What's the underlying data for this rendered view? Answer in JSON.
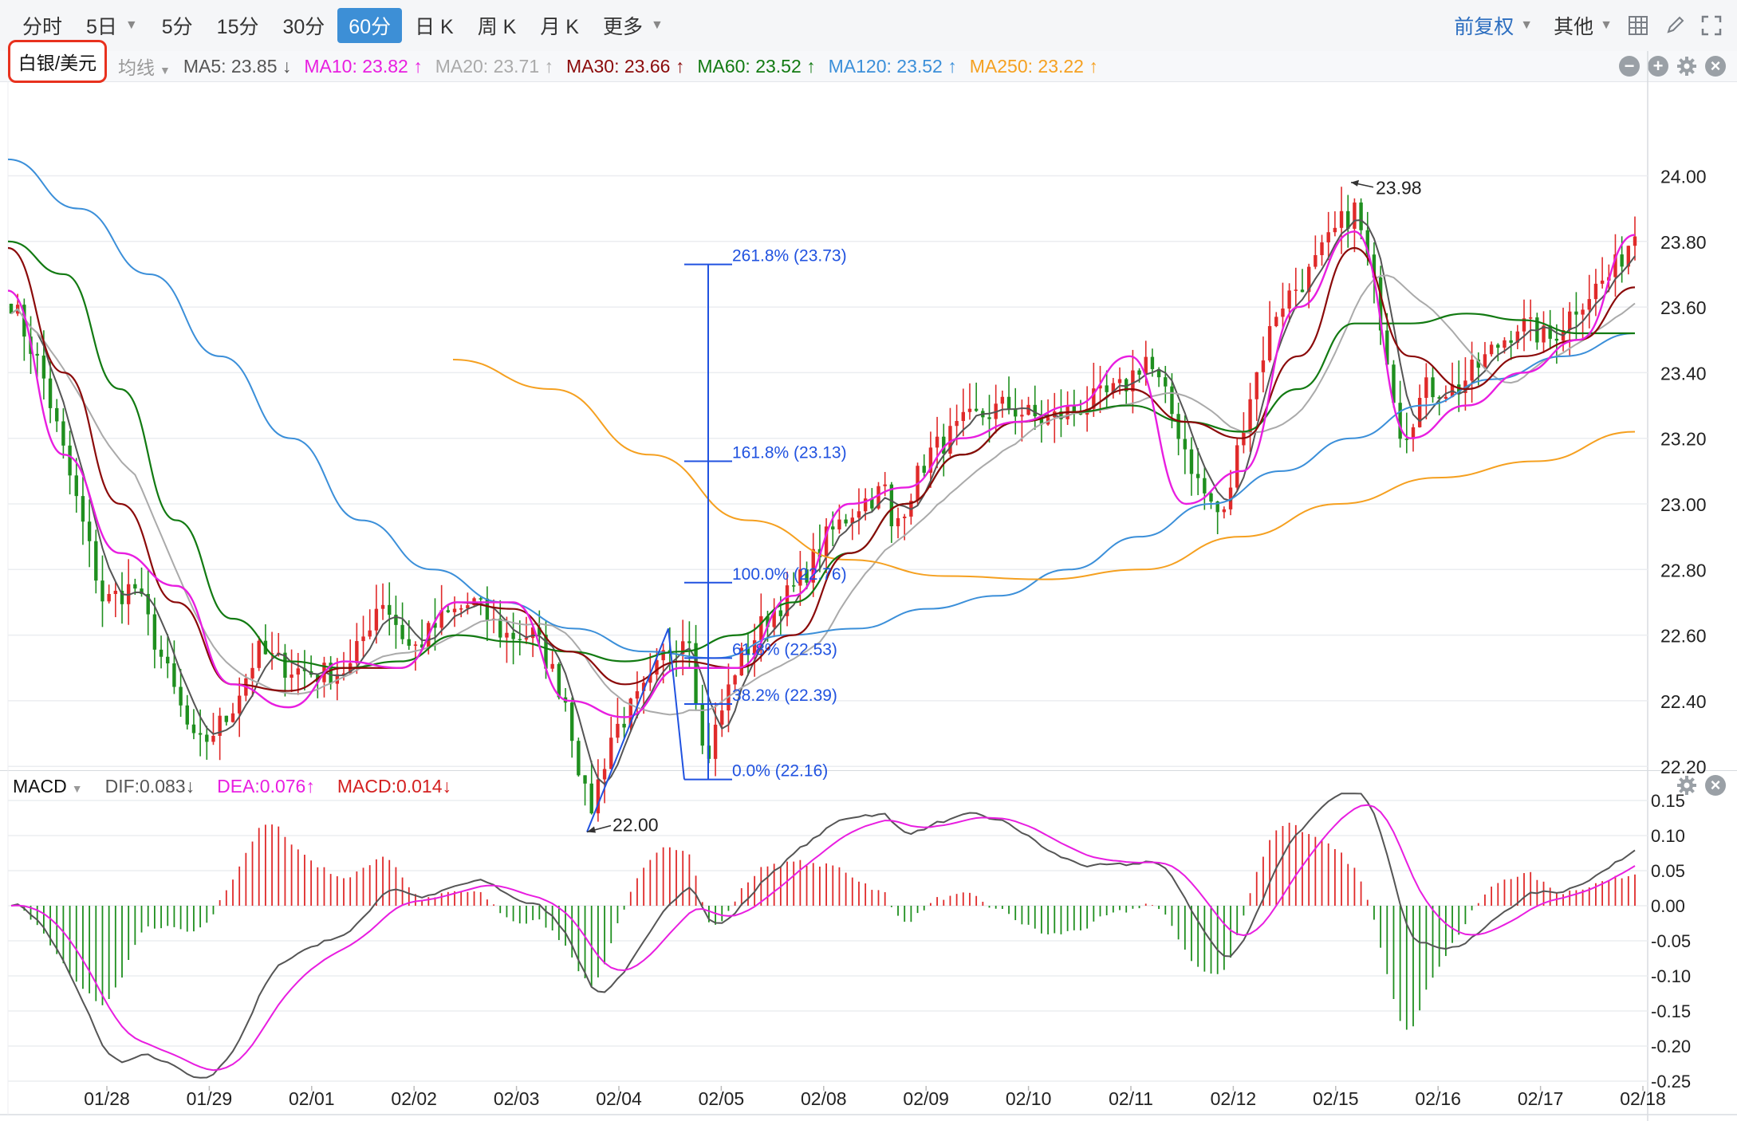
{
  "toolbar": {
    "tabs": [
      {
        "label": "分时",
        "active": false
      },
      {
        "label": "5日",
        "active": false,
        "dropdown": true
      },
      {
        "label": "5分",
        "active": false
      },
      {
        "label": "15分",
        "active": false
      },
      {
        "label": "30分",
        "active": false
      },
      {
        "label": "60分",
        "active": true
      },
      {
        "label": "日 K",
        "active": false
      },
      {
        "label": "周 K",
        "active": false
      },
      {
        "label": "月 K",
        "active": false
      },
      {
        "label": "更多",
        "active": false,
        "dropdown": true
      }
    ],
    "adjust_label": "前复权",
    "other_label": "其他",
    "icons": [
      "grid-icon",
      "pencil-icon",
      "fullscreen-icon"
    ]
  },
  "symbol": "白银/美元",
  "ma_bar": {
    "mode_label": "均线",
    "items": [
      {
        "label": "MA5: 23.85 ↓",
        "color": "#555555"
      },
      {
        "label": "MA10: 23.82 ↑",
        "color": "#e81ee0"
      },
      {
        "label": "MA20: 23.71 ↑",
        "color": "#aaaaaa"
      },
      {
        "label": "MA30: 23.66 ↑",
        "color": "#8b0a0a"
      },
      {
        "label": "MA60: 23.52 ↑",
        "color": "#127a12"
      },
      {
        "label": "MA120: 23.52 ↑",
        "color": "#3b8fd9"
      },
      {
        "label": "MA250: 23.22 ↑",
        "color": "#f5a020"
      }
    ]
  },
  "macd_bar": {
    "title": "MACD",
    "items": [
      {
        "label": "DIF:0.083↓",
        "color": "#555555"
      },
      {
        "label": "DEA:0.076↑",
        "color": "#e81ee0"
      },
      {
        "label": "MACD:0.014↓",
        "color": "#d42020"
      }
    ]
  },
  "chart_data": {
    "type": "candlestick",
    "interval": "60分",
    "price_axis": {
      "ticks": [
        24.0,
        23.8,
        23.6,
        23.4,
        23.2,
        23.0,
        22.8,
        22.6,
        22.4,
        22.2
      ],
      "range": [
        21.98,
        24.08
      ]
    },
    "date_labels": [
      "01/28",
      "01/29",
      "02/01",
      "02/02",
      "02/03",
      "02/04",
      "02/05",
      "02/08",
      "02/09",
      "02/10",
      "02/11",
      "02/12",
      "02/15",
      "02/16",
      "02/17",
      "02/18"
    ],
    "high_marker": {
      "label": "23.98",
      "value": 23.98
    },
    "low_marker": {
      "label": "22.00",
      "value": 22.0
    },
    "fibonacci": {
      "levels": [
        {
          "label": "261.8% (23.73)",
          "value": 23.73
        },
        {
          "label": "161.8% (23.13)",
          "value": 23.13
        },
        {
          "label": "100.0% (22.76)",
          "value": 22.76
        },
        {
          "label": "61.8% (22.53)",
          "value": 22.53
        },
        {
          "label": "38.2% (22.39)",
          "value": 22.39
        },
        {
          "label": "0.0% (22.16)",
          "value": 22.16
        }
      ],
      "zigzag": [
        22.0,
        22.62,
        22.16
      ]
    },
    "ma_series": [
      {
        "name": "MA5",
        "color": "#555555"
      },
      {
        "name": "MA10",
        "color": "#e81ee0",
        "points": [
          23.65,
          23.15,
          22.85,
          22.75,
          22.45,
          22.38,
          22.52,
          22.5,
          22.7,
          22.7,
          22.4,
          22.35,
          22.5,
          22.5,
          22.72,
          23.0,
          23.05,
          23.2,
          23.25,
          23.3,
          23.45,
          23.0,
          23.1,
          23.6,
          23.83,
          23.2,
          23.3,
          23.4,
          23.5,
          23.82
        ]
      },
      {
        "name": "MA20",
        "color": "#aaaaaa"
      },
      {
        "name": "MA30",
        "color": "#8b0a0a",
        "points": [
          23.78,
          23.4,
          23.0,
          22.7,
          22.45,
          22.43,
          22.5,
          22.5,
          22.7,
          22.68,
          22.55,
          22.45,
          22.52,
          22.5,
          22.6,
          22.85,
          23.0,
          23.15,
          23.25,
          23.28,
          23.35,
          23.25,
          23.2,
          23.45,
          23.78,
          23.45,
          23.35,
          23.45,
          23.5,
          23.66
        ]
      },
      {
        "name": "MA60",
        "color": "#127a12",
        "points": [
          23.8,
          23.7,
          23.35,
          22.95,
          22.65,
          22.52,
          22.5,
          22.52,
          22.6,
          22.58,
          22.55,
          22.52,
          22.55,
          22.6,
          22.7,
          22.85,
          23.0,
          23.15,
          23.25,
          23.28,
          23.3,
          23.25,
          23.22,
          23.35,
          23.55,
          23.55,
          23.58,
          23.56,
          23.52,
          23.52
        ]
      },
      {
        "name": "MA120",
        "color": "#3b8fd9",
        "points": [
          24.05,
          23.9,
          23.7,
          23.45,
          23.2,
          22.95,
          22.8,
          22.7,
          22.62,
          22.55,
          22.53,
          22.6,
          22.62,
          22.68,
          22.72,
          22.8,
          22.9,
          23.0,
          23.1,
          23.2,
          23.3,
          23.38,
          23.45,
          23.52
        ]
      },
      {
        "name": "MA250",
        "color": "#f5a020",
        "points": [
          23.44,
          23.35,
          23.15,
          22.95,
          22.83,
          22.78,
          22.77,
          22.8,
          22.9,
          23.0,
          23.08,
          23.13,
          23.22
        ]
      }
    ],
    "macd": {
      "axis_ticks": [
        0.15,
        0.1,
        0.05,
        0.0,
        -0.05,
        -0.1,
        -0.15,
        -0.2,
        -0.25
      ],
      "range": [
        -0.27,
        0.165
      ]
    }
  }
}
